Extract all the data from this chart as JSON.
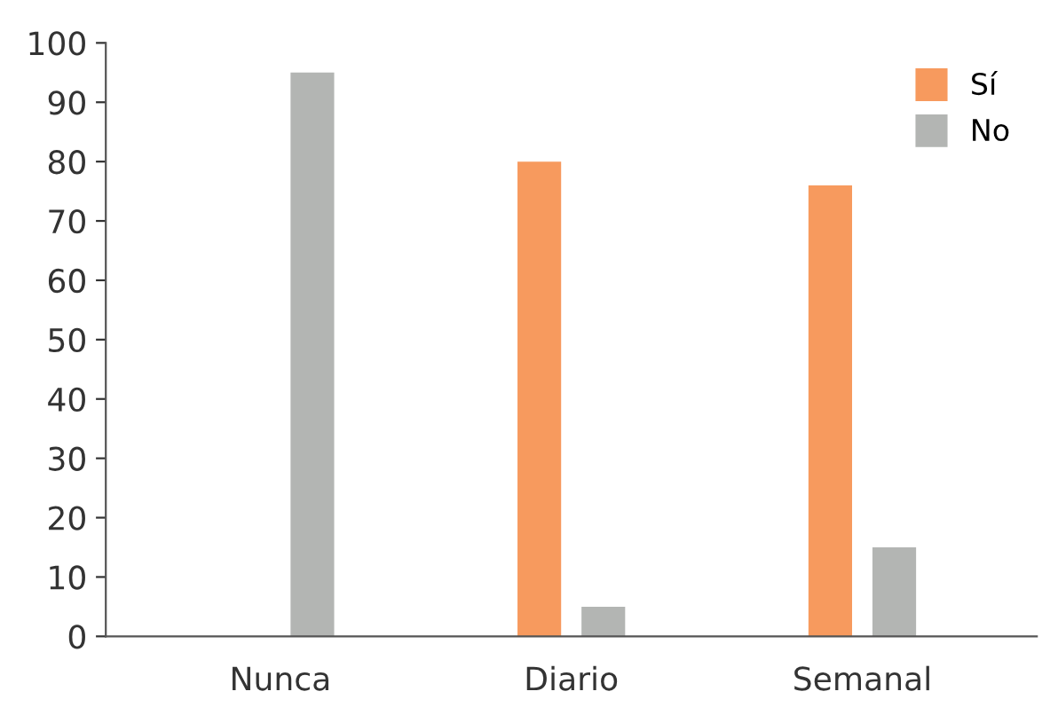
{
  "chart_data": {
    "type": "bar",
    "categories": [
      "Nunca",
      "Diario",
      "Semanal"
    ],
    "series": [
      {
        "name": "Sí",
        "color": "#f79a5e",
        "values": [
          0,
          80,
          76
        ]
      },
      {
        "name": "No",
        "color": "#b3b5b3",
        "values": [
          95,
          5,
          15
        ]
      }
    ],
    "ylim": [
      0,
      100
    ],
    "yticks": [
      0,
      10,
      20,
      30,
      40,
      50,
      60,
      70,
      80,
      90,
      100
    ],
    "grid": false,
    "legend": "top right"
  }
}
